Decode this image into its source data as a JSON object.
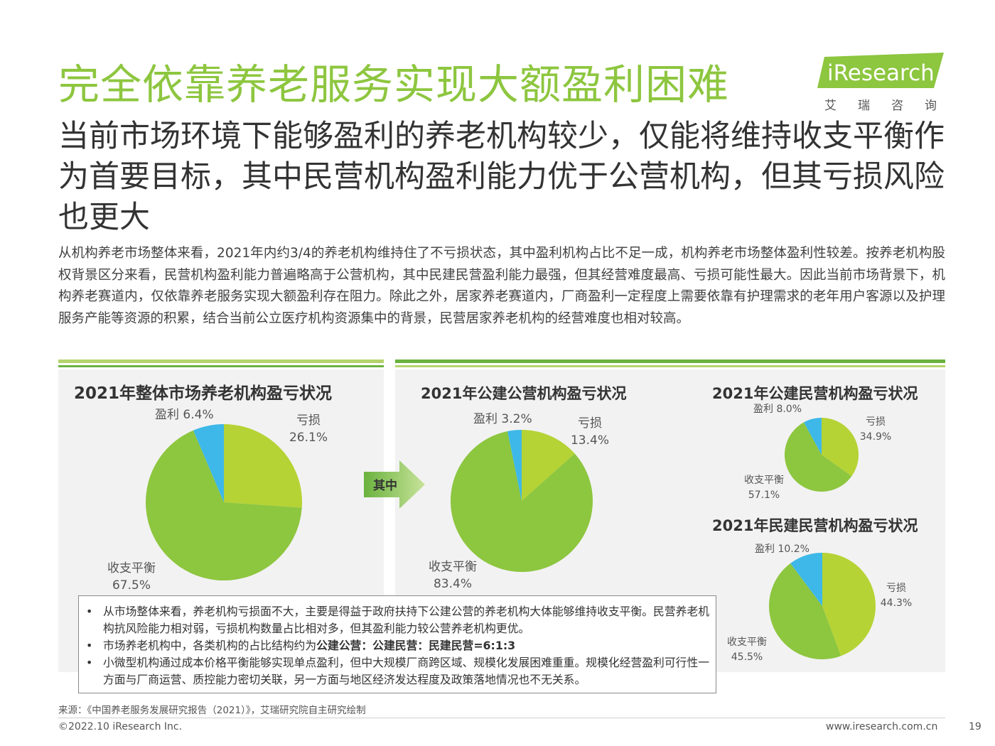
{
  "header": {
    "title": "完全依靠养老服务实现大额盈利困难",
    "logo_text": "iResearch",
    "logo_sub": "艾瑞咨询",
    "subtitle": "当前市场环境下能够盈利的养老机构较少，仅能将维持收支平衡作为首要目标，其中民营机构盈利能力优于公营机构，但其亏损风险也更大"
  },
  "body_text": "从机构养老市场整体来看，2021年内约3/4的养老机构维持住了不亏损状态，其中盈利机构占比不足一成，机构养老市场整体盈利性较差。按养老机构股权背景区分来看，民营机构盈利能力普遍略高于公营机构，其中民建民营盈利能力最强，但其经营难度最高、亏损可能性最大。因此当前市场背景下，机构养老赛道内，仅依靠养老服务实现大额盈利存在阻力。除此之外，居家养老赛道内，厂商盈利一定程度上需要依靠有护理需求的老年用户客源以及护理服务产能等资源的积累，结合当前公立医疗机构资源集中的背景，民营居家养老机构的经营难度也相对较高。",
  "arrow_label": "其中",
  "colors": {
    "loss": "#b5d334",
    "balance": "#8dc63f",
    "profit": "#3db8e8",
    "title_green": "#8dc63f"
  },
  "chart_data": [
    {
      "type": "pie",
      "title": "2021年整体市场养老机构盈亏状况",
      "slices": [
        {
          "label": "亏损",
          "value": 26.1,
          "display": "26.1%"
        },
        {
          "label": "收支平衡",
          "value": 67.5,
          "display": "67.5%"
        },
        {
          "label": "盈利",
          "value": 6.4,
          "display": "6.4%"
        }
      ]
    },
    {
      "type": "pie",
      "title": "2021年公建公营机构盈亏状况",
      "slices": [
        {
          "label": "亏损",
          "value": 13.4,
          "display": "13.4%"
        },
        {
          "label": "收支平衡",
          "value": 83.4,
          "display": "83.4%"
        },
        {
          "label": "盈利",
          "value": 3.2,
          "display": "3.2%"
        }
      ]
    },
    {
      "type": "pie",
      "title": "2021年公建民营机构盈亏状况",
      "slices": [
        {
          "label": "亏损",
          "value": 34.9,
          "display": "34.9%"
        },
        {
          "label": "收支平衡",
          "value": 57.1,
          "display": "57.1%"
        },
        {
          "label": "盈利",
          "value": 8.0,
          "display": "8.0%"
        }
      ]
    },
    {
      "type": "pie",
      "title": "2021年民建民营机构盈亏状况",
      "slices": [
        {
          "label": "亏损",
          "value": 44.3,
          "display": "44.3%"
        },
        {
          "label": "收支平衡",
          "value": 45.5,
          "display": "45.5%"
        },
        {
          "label": "盈利",
          "value": 10.2,
          "display": "10.2%"
        }
      ]
    }
  ],
  "notes": {
    "bullet": "•",
    "n1": "从市场整体来看，养老机构亏损面不大，主要是得益于政府扶持下公建公营的养老机构大体能够维持收支平衡。民营养老机构抗风险能力相对弱，亏损机构数量占比相对多，但其盈利能力较公营养老机构更优。",
    "n2_prefix": "市场养老机构中，各类机构的占比结构约为",
    "n2_bold": "公建公营：公建民营：民建民营=6:1:3",
    "n3": "小微型机构通过成本价格平衡能够实现单点盈利，但中大规模厂商跨区域、规模化发展困难重重。规模化经营盈利可行性一方面与厂商运营、质控能力密切关联，另一方面与地区经济发达程度及政策落地情况也不无关系。"
  },
  "footer": {
    "source": "来源：《中国养老服务发展研究报告（2021）》，艾瑞研究院自主研究绘制",
    "copyright": "©2022.10 iResearch Inc.",
    "website": "www.iresearch.com.cn",
    "page": "19"
  }
}
